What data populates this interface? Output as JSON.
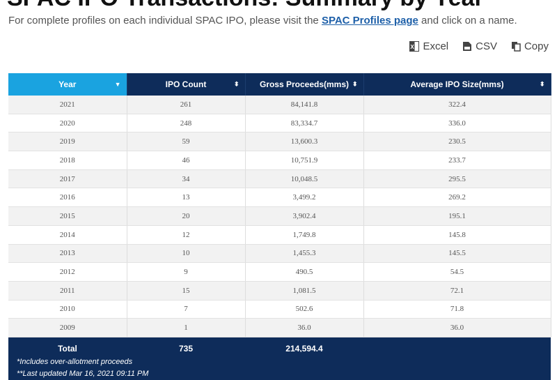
{
  "page": {
    "title": "SPAC IPO Transactions: Summary by Year",
    "intro_prefix": "For complete profiles on each individual SPAC IPO, please visit the ",
    "intro_link": "SPAC Profiles page",
    "intro_suffix": " and click on a name."
  },
  "export": {
    "excel": "Excel",
    "csv": "CSV",
    "copy": "Copy"
  },
  "table": {
    "headers": [
      "Year",
      "IPO Count",
      "Gross Proceeds(mms)",
      "Average IPO Size(mms)"
    ],
    "rows": [
      [
        "2021",
        "261",
        "84,141.8",
        "322.4"
      ],
      [
        "2020",
        "248",
        "83,334.7",
        "336.0"
      ],
      [
        "2019",
        "59",
        "13,600.3",
        "230.5"
      ],
      [
        "2018",
        "46",
        "10,751.9",
        "233.7"
      ],
      [
        "2017",
        "34",
        "10,048.5",
        "295.5"
      ],
      [
        "2016",
        "13",
        "3,499.2",
        "269.2"
      ],
      [
        "2015",
        "20",
        "3,902.4",
        "195.1"
      ],
      [
        "2014",
        "12",
        "1,749.8",
        "145.8"
      ],
      [
        "2013",
        "10",
        "1,455.3",
        "145.5"
      ],
      [
        "2012",
        "9",
        "490.5",
        "54.5"
      ],
      [
        "2011",
        "15",
        "1,081.5",
        "72.1"
      ],
      [
        "2010",
        "7",
        "502.6",
        "71.8"
      ],
      [
        "2009",
        "1",
        "36.0",
        "36.0"
      ]
    ],
    "total": {
      "label": "Total",
      "ipo_count": "735",
      "gross_proceeds": "214,594.4",
      "avg_size": ""
    },
    "sorted_column": "Year",
    "colors": {
      "header": "#0e2c5a",
      "active_header": "#1aa3e0"
    }
  },
  "notes": {
    "line1": "*Includes over-allotment proceeds",
    "line2": "**Last updated Mar 16, 2021 09:11 PM"
  }
}
